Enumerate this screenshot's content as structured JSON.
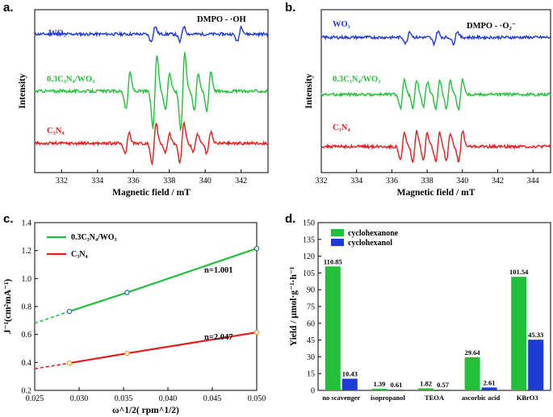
{
  "chart_data": [
    {
      "panel": "a.",
      "type": "line",
      "title": "DMPO - ·OH",
      "xlabel": "Magnetic field / mT",
      "ylabel": "Intensity",
      "xlim": [
        330.5,
        343.5
      ],
      "xticks": [
        "332",
        "334",
        "336",
        "338",
        "340",
        "342"
      ],
      "series": [
        {
          "name": "WO3",
          "label": "WO₃",
          "color": "#1f3bd6",
          "baseline": 0.85,
          "peaks": [
            [
              337.1,
              0.05
            ],
            [
              338.7,
              0.05
            ],
            [
              341.9,
              0.05
            ]
          ]
        },
        {
          "name": "0.3C3N4/WO3",
          "label": "0.3C₃N₄/WO₃",
          "color": "#22c03a",
          "baseline": 0.5,
          "peaks": [
            [
              335.7,
              0.12
            ],
            [
              337.2,
              0.24
            ],
            [
              337.9,
              0.12
            ],
            [
              338.75,
              0.25
            ],
            [
              339.5,
              0.12
            ],
            [
              340.2,
              0.13
            ]
          ]
        },
        {
          "name": "C3N4",
          "label": "C₃N₄",
          "color": "#e8191c",
          "baseline": 0.18,
          "peaks": [
            [
              335.65,
              0.07
            ],
            [
              337.15,
              0.13
            ],
            [
              337.9,
              0.06
            ],
            [
              338.7,
              0.13
            ],
            [
              339.45,
              0.06
            ],
            [
              340.2,
              0.07
            ]
          ]
        }
      ]
    },
    {
      "panel": "b.",
      "type": "line",
      "title": "DMPO - ·O₂⁻",
      "xlabel": "Magnetic field / mT",
      "ylabel": "Intensity",
      "xlim": [
        332,
        345
      ],
      "xticks": [
        "332",
        "334",
        "336",
        "338",
        "340",
        "342",
        "344"
      ],
      "series": [
        {
          "name": "WO3",
          "label": "WO₃",
          "color": "#1f3bd6",
          "baseline": 0.83,
          "peaks": [
            [
              336.9,
              0.04
            ],
            [
              338.5,
              0.04
            ],
            [
              339.6,
              0.04
            ]
          ]
        },
        {
          "name": "0.3C3N4/WO3",
          "label": "0.3C₃N₄/WO₃",
          "color": "#22c03a",
          "baseline": 0.48,
          "peaks": [
            [
              336.6,
              0.09
            ],
            [
              337.3,
              0.09
            ],
            [
              337.9,
              0.08
            ],
            [
              338.6,
              0.09
            ],
            [
              339.2,
              0.09
            ],
            [
              339.9,
              0.1
            ]
          ]
        },
        {
          "name": "C3N4",
          "label": "C₃N₄",
          "color": "#e8191c",
          "baseline": 0.16,
          "peaks": [
            [
              336.6,
              0.09
            ],
            [
              337.3,
              0.1
            ],
            [
              337.9,
              0.09
            ],
            [
              338.6,
              0.09
            ],
            [
              339.2,
              0.09
            ],
            [
              339.9,
              0.1
            ]
          ]
        }
      ]
    },
    {
      "panel": "c.",
      "type": "line",
      "xlabel": "ω^1/2( rpm^1/2)",
      "ylabel": "J⁻¹(cm²mA⁻¹)",
      "xlim": [
        0.025,
        0.05
      ],
      "ylim": [
        0.2,
        1.4
      ],
      "xticks": [
        "0.025",
        "0.030",
        "0.035",
        "0.040",
        "0.045",
        "0.050"
      ],
      "yticks": [
        "0.2",
        "0.4",
        "0.6",
        "0.8",
        "1.0",
        "1.2",
        "1.4"
      ],
      "series": [
        {
          "name": "0.3C3N4/WO3",
          "label": "0.3C₃N₄/WO₃",
          "color": "#22c03a",
          "marker_color": "#3a6ea5",
          "x": [
            0.0289,
            0.0354,
            0.05
          ],
          "y": [
            0.765,
            0.9,
            1.215
          ],
          "extrap_start": [
            0.025,
            0.68
          ],
          "annotation": "n=1.001"
        },
        {
          "name": "C3N4",
          "label": "C₃N₄",
          "color": "#e8191c",
          "marker_color": "#f0a020",
          "x": [
            0.0289,
            0.0354,
            0.05
          ],
          "y": [
            0.395,
            0.465,
            0.615
          ],
          "extrap_start": [
            0.025,
            0.355
          ],
          "annotation": "n=2.047"
        }
      ]
    },
    {
      "panel": "d.",
      "type": "bar",
      "xlabel": "",
      "ylabel": "Yield / μmol·g⁻¹·h⁻¹",
      "ylim": [
        0,
        150
      ],
      "yticks": [
        "0",
        "15",
        "30",
        "45",
        "60",
        "75",
        "90",
        "105",
        "120",
        "135",
        "150"
      ],
      "categories": [
        "no scavenger",
        "isopropanol",
        "TEOA",
        "ascorbic acid",
        "KBrO3"
      ],
      "series": [
        {
          "name": "cyclohexanone",
          "color": "#22c03a",
          "values": [
            110.85,
            1.39,
            1.82,
            29.64,
            101.54
          ],
          "labels": [
            "110.85",
            "1.39",
            "1.82",
            "29.64",
            "101.54"
          ]
        },
        {
          "name": "cyclohexanol",
          "color": "#1f3bd6",
          "values": [
            10.43,
            0.61,
            0.57,
            2.61,
            45.33
          ],
          "labels": [
            "10.43",
            "0.61",
            "0.57",
            "2.61",
            "45.33"
          ]
        }
      ]
    }
  ]
}
